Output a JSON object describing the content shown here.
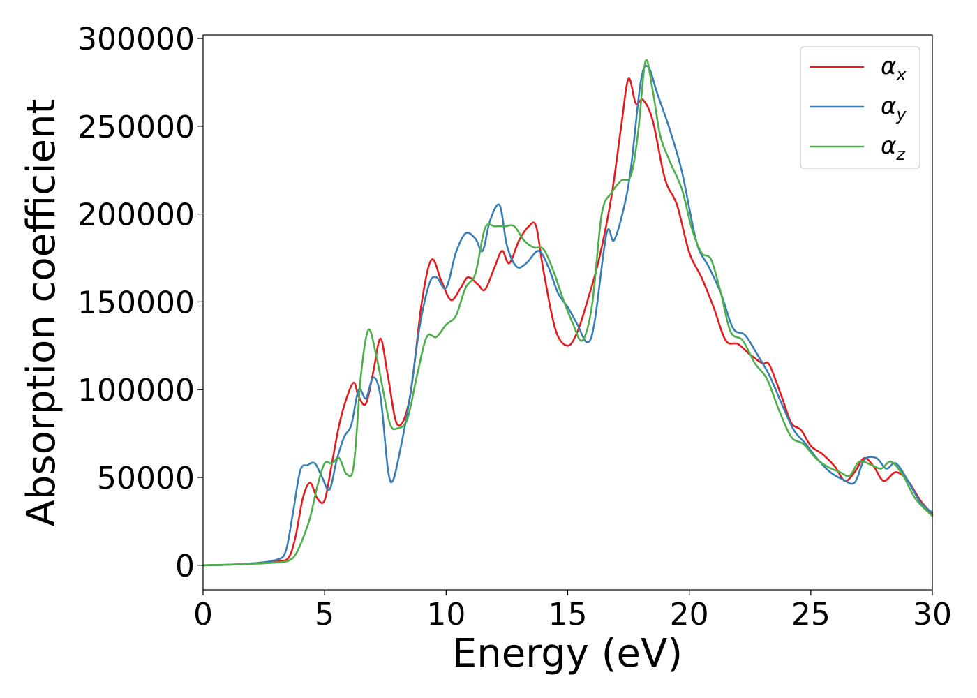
{
  "chart_data": {
    "type": "line",
    "title": "",
    "xlabel": "Energy (eV)",
    "ylabel": "Absorption coefficient",
    "xlim": [
      0,
      30
    ],
    "ylim": [
      -14000,
      302000
    ],
    "xticks": [
      0,
      5,
      10,
      15,
      20,
      25,
      30
    ],
    "yticks": [
      0,
      50000,
      100000,
      150000,
      200000,
      250000,
      300000
    ],
    "grid": false,
    "legend_position": "top-right",
    "series": [
      {
        "name": "α",
        "subscript": "x",
        "color": "#e41a1c",
        "x": [
          0,
          1,
          2,
          3,
          3.5,
          3.8,
          4.1,
          4.4,
          4.7,
          5,
          5.3,
          5.6,
          5.9,
          6.2,
          6.4,
          6.7,
          7,
          7.3,
          7.6,
          8,
          8.5,
          9,
          9.4,
          9.8,
          10.2,
          10.6,
          10.9,
          11.3,
          11.6,
          12,
          12.3,
          12.6,
          13,
          13.4,
          13.7,
          14,
          14.5,
          15,
          15.4,
          15.8,
          16.3,
          16.8,
          17.2,
          17.5,
          17.8,
          18.1,
          18.5,
          19,
          19.5,
          20,
          20.5,
          21,
          21.5,
          22,
          22.5,
          23,
          23.3,
          23.8,
          24.2,
          24.6,
          25,
          25.5,
          26,
          26.4,
          26.8,
          27.2,
          27.6,
          28,
          28.5,
          29,
          29.5,
          30
        ],
        "y": [
          0,
          300,
          1000,
          2500,
          4000,
          16000,
          38000,
          47000,
          38000,
          37000,
          58000,
          80000,
          95000,
          104000,
          96000,
          92000,
          110000,
          129000,
          108000,
          80000,
          95000,
          150000,
          174000,
          162000,
          151000,
          158000,
          164000,
          160000,
          157000,
          170000,
          179000,
          172000,
          185000,
          193000,
          193000,
          168000,
          134000,
          125000,
          133000,
          150000,
          175000,
          210000,
          250000,
          277000,
          263000,
          265000,
          253000,
          220000,
          205000,
          178000,
          164000,
          147000,
          128000,
          126000,
          120000,
          115000,
          114000,
          96000,
          81000,
          77000,
          68000,
          63000,
          56000,
          48000,
          53000,
          61000,
          56000,
          48000,
          53000,
          48000,
          37000,
          29000
        ]
      },
      {
        "name": "α",
        "subscript": "y",
        "color": "#377eb8",
        "x": [
          0,
          1,
          2,
          3,
          3.4,
          3.7,
          4,
          4.3,
          4.6,
          4.9,
          5.2,
          5.5,
          5.8,
          6.1,
          6.4,
          6.7,
          7,
          7.3,
          7.6,
          7.8,
          8.1,
          8.5,
          8.9,
          9.3,
          9.6,
          10,
          10.4,
          10.8,
          11.2,
          11.5,
          11.8,
          12.2,
          12.5,
          12.9,
          13.3,
          13.8,
          14.2,
          14.6,
          15,
          15.4,
          15.8,
          16.1,
          16.6,
          16.9,
          17.3,
          17.6,
          18,
          18.3,
          18.7,
          19.2,
          19.7,
          20.3,
          20.8,
          21.3,
          21.8,
          22.3,
          22.8,
          23.3,
          23.8,
          24.3,
          24.8,
          25.3,
          25.8,
          26.3,
          26.8,
          27.2,
          27.7,
          28.1,
          28.5,
          29,
          29.5,
          30
        ],
        "y": [
          0,
          300,
          1000,
          3000,
          8000,
          30000,
          54000,
          57000,
          58000,
          50000,
          43000,
          60000,
          73000,
          80000,
          100000,
          95000,
          107000,
          96000,
          55000,
          48000,
          65000,
          95000,
          135000,
          160000,
          164000,
          158000,
          178000,
          189000,
          186000,
          179000,
          196000,
          205000,
          182000,
          170000,
          172000,
          179000,
          170000,
          155000,
          147000,
          137000,
          127000,
          138000,
          189000,
          185000,
          203000,
          226000,
          275000,
          284000,
          268000,
          248000,
          224000,
          184000,
          170000,
          155000,
          135000,
          131000,
          120000,
          108000,
          92000,
          77000,
          69000,
          60000,
          53000,
          49000,
          47000,
          60000,
          61000,
          55000,
          58000,
          48000,
          36000,
          30000
        ]
      },
      {
        "name": "α",
        "subscript": "z",
        "color": "#4daf4a",
        "x": [
          0,
          1,
          2,
          3,
          3.5,
          3.8,
          4.1,
          4.4,
          4.7,
          5,
          5.3,
          5.6,
          5.9,
          6.2,
          6.5,
          6.8,
          7.1,
          7.4,
          7.7,
          8,
          8.4,
          8.8,
          9.2,
          9.6,
          10,
          10.4,
          10.8,
          11.2,
          11.6,
          12,
          12.4,
          12.8,
          13.2,
          13.6,
          14,
          14.4,
          14.8,
          15.2,
          15.6,
          16,
          16.4,
          16.8,
          17.2,
          17.6,
          17.9,
          18.2,
          18.5,
          18.8,
          19.2,
          19.7,
          20.1,
          20.5,
          20.9,
          21.3,
          21.7,
          22.2,
          22.7,
          23.2,
          23.7,
          24.2,
          24.7,
          25.2,
          25.7,
          26.2,
          26.6,
          27,
          27.5,
          27.9,
          28.3,
          28.8,
          29.3,
          30
        ],
        "y": [
          0,
          300,
          800,
          1500,
          2500,
          6000,
          15000,
          27000,
          45000,
          58000,
          58000,
          61000,
          52000,
          57000,
          109000,
          134000,
          121000,
          100000,
          80000,
          78000,
          83000,
          108000,
          130000,
          130000,
          137000,
          142000,
          158000,
          166000,
          192000,
          193000,
          193000,
          193000,
          185000,
          181000,
          180000,
          168000,
          152000,
          138000,
          128000,
          148000,
          200000,
          212000,
          219000,
          222000,
          247000,
          287000,
          270000,
          245000,
          230000,
          214000,
          192000,
          178000,
          174000,
          155000,
          133000,
          128000,
          115000,
          106000,
          88000,
          73000,
          69000,
          61000,
          56000,
          53000,
          51000,
          59000,
          57000,
          55000,
          59000,
          51000,
          38000,
          28000
        ]
      }
    ]
  }
}
